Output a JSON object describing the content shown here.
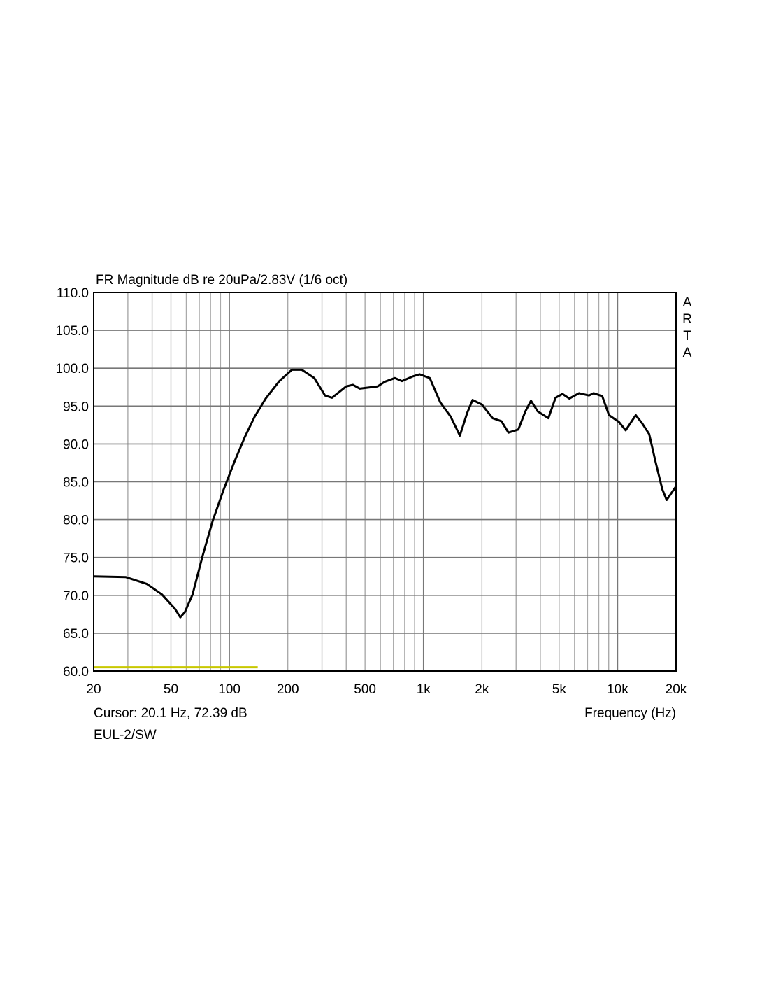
{
  "chart_data": {
    "type": "line",
    "title": "FR Magnitude dB re 20uPa/2.83V (1/6 oct)",
    "xlabel": "Frequency (Hz)",
    "ylabel": "",
    "xscale": "log",
    "xlim": [
      20,
      20000
    ],
    "ylim": [
      60,
      110
    ],
    "grid": true,
    "y_ticks": [
      110,
      105,
      100,
      95,
      90,
      85,
      80,
      75,
      70,
      65,
      60
    ],
    "y_tick_labels": [
      "110.0",
      "105.0",
      "100.0",
      "95.0",
      "90.0",
      "85.0",
      "80.0",
      "75.0",
      "70.0",
      "65.0",
      "60.0"
    ],
    "x_ticks": [
      20,
      50,
      100,
      200,
      500,
      1000,
      2000,
      5000,
      10000,
      20000
    ],
    "x_tick_labels": [
      "20",
      "50",
      "100",
      "200",
      "500",
      "1k",
      "2k",
      "5k",
      "10k",
      "20k"
    ],
    "watermark": "ARTA",
    "cursor_text": "Cursor: 20.1 Hz, 72.39 dB",
    "measurement_name": "EUL-2/SW",
    "series": [
      {
        "name": "EUL-2/SW",
        "color": "#000000",
        "x": [
          20,
          29.3,
          37.6,
          45,
          52.5,
          55.9,
          59,
          64.6,
          72.8,
          82,
          93.5,
          106,
          120,
          135,
          154,
          181,
          210,
          236,
          274,
          311,
          338,
          400,
          433,
          470,
          580,
          630,
          712,
          775,
          877,
          955,
          1078,
          1220,
          1380,
          1540,
          1680,
          1790,
          2000,
          2270,
          2520,
          2740,
          3080,
          3350,
          3580,
          3880,
          4400,
          4790,
          5200,
          5640,
          6330,
          7120,
          7530,
          8340,
          9030,
          10160,
          11010,
          12400,
          13400,
          14550,
          15700,
          17000,
          17900,
          20000
        ],
        "y": [
          72.5,
          72.4,
          71.5,
          70.1,
          68.2,
          67.1,
          67.8,
          70.1,
          75.2,
          79.8,
          84,
          87.6,
          90.9,
          93.6,
          96,
          98.3,
          99.8,
          99.8,
          98.7,
          96.4,
          96.1,
          97.6,
          97.8,
          97.3,
          97.6,
          98.2,
          98.7,
          98.3,
          98.9,
          99.2,
          98.7,
          95.5,
          93.6,
          91.1,
          94.1,
          95.8,
          95.2,
          93.4,
          93,
          91.5,
          91.9,
          94.3,
          95.7,
          94.3,
          93.4,
          96.1,
          96.6,
          96,
          96.7,
          96.4,
          96.7,
          96.3,
          93.8,
          92.9,
          91.8,
          93.8,
          92.7,
          91.3,
          87.6,
          84,
          82.6,
          84.4
        ]
      }
    ],
    "marker_line": {
      "color": "#c8c800",
      "x": [
        20,
        140
      ],
      "y": 60.5
    }
  }
}
